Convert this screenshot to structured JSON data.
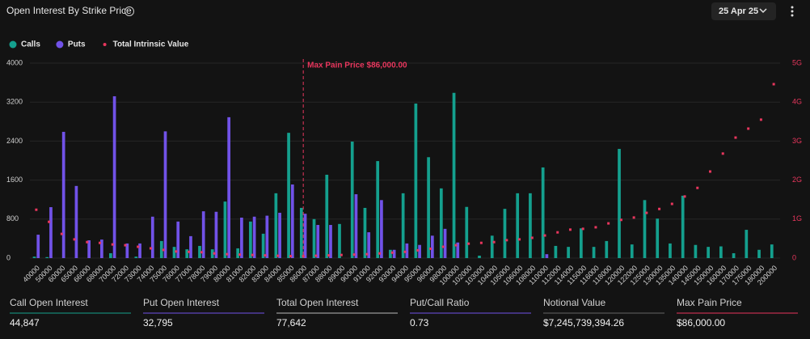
{
  "header": {
    "title": "Open Interest By Strike Price",
    "date": "25 Apr 25"
  },
  "chart_data": {
    "type": "bar",
    "categories": [
      "40000",
      "50000",
      "60000",
      "65000",
      "66000",
      "68000",
      "70000",
      "72000",
      "73000",
      "74000",
      "75000",
      "76000",
      "77000",
      "78000",
      "79000",
      "80000",
      "81000",
      "82000",
      "83000",
      "84000",
      "85000",
      "86000",
      "87000",
      "88000",
      "89000",
      "90000",
      "91000",
      "92000",
      "93000",
      "94000",
      "95000",
      "96000",
      "98000",
      "100000",
      "102000",
      "103000",
      "104000",
      "105000",
      "106000",
      "108000",
      "110000",
      "112000",
      "114000",
      "115000",
      "116000",
      "118000",
      "120000",
      "122000",
      "125000",
      "130000",
      "135000",
      "140000",
      "145000",
      "150000",
      "160000",
      "170000",
      "175000",
      "180000",
      "200000"
    ],
    "series": [
      {
        "name": "Calls",
        "color": "#14a08e",
        "values": [
          30,
          20,
          0,
          0,
          0,
          0,
          100,
          0,
          30,
          0,
          350,
          230,
          180,
          250,
          180,
          1160,
          200,
          750,
          500,
          1330,
          2570,
          1030,
          800,
          1710,
          700,
          2390,
          1030,
          1990,
          170,
          1330,
          3170,
          2070,
          1430,
          3390,
          1050,
          50,
          460,
          1010,
          1330,
          1330,
          1860,
          250,
          230,
          610,
          230,
          350,
          2240,
          280,
          1190,
          810,
          300,
          1280,
          270,
          230,
          240,
          100,
          580,
          170,
          280
        ]
      },
      {
        "name": "Puts",
        "color": "#7152e8",
        "values": [
          480,
          1045,
          2590,
          1480,
          365,
          380,
          3320,
          300,
          300,
          850,
          2600,
          750,
          450,
          960,
          950,
          2890,
          830,
          850,
          870,
          930,
          1510,
          910,
          680,
          680,
          0,
          1310,
          530,
          1190,
          170,
          300,
          270,
          460,
          600,
          320,
          0,
          0,
          0,
          0,
          0,
          0,
          80,
          0,
          0,
          0,
          0,
          0,
          0,
          0,
          0,
          0,
          0,
          0,
          0,
          0,
          0,
          0,
          0,
          0,
          0
        ]
      },
      {
        "name": "Total Intrinsic Value",
        "type": "scatter",
        "axis": "y2",
        "color": "#e8365d",
        "values": [
          1240000000.0,
          930000000.0,
          620000000.0,
          480000000.0,
          410000000.0,
          390000000.0,
          350000000.0,
          330000000.0,
          290000000.0,
          250000000.0,
          210000000.0,
          170000000.0,
          160000000.0,
          150000000.0,
          120000000.0,
          100000000.0,
          90000000.0,
          80000000.0,
          70000000.0,
          60000000.0,
          50000000.0,
          50000000.0,
          60000000.0,
          70000000.0,
          80000000.0,
          90000000.0,
          100000000.0,
          120000000.0,
          140000000.0,
          160000000.0,
          200000000.0,
          240000000.0,
          290000000.0,
          330000000.0,
          370000000.0,
          390000000.0,
          410000000.0,
          460000000.0,
          480000000.0,
          520000000.0,
          580000000.0,
          660000000.0,
          730000000.0,
          750000000.0,
          790000000.0,
          890000000.0,
          980000000.0,
          1040000000.0,
          1160000000.0,
          1260000000.0,
          1390000000.0,
          1580000000.0,
          1800000000.0,
          2220000000.0,
          2680000000.0,
          3090000000.0,
          3320000000.0,
          3550000000.0,
          4460000000.0
        ]
      }
    ],
    "ylim": [
      0,
      4000
    ],
    "yticks": [
      0,
      800,
      1600,
      2400,
      3200,
      4000
    ],
    "y2lim": [
      0,
      5000000000.0
    ],
    "y2ticks": [
      0,
      {
        "value": 1000000000.0,
        "label": "1G"
      },
      {
        "value": 2000000000.0,
        "label": "2G"
      },
      {
        "value": 3000000000.0,
        "label": "3G"
      },
      {
        "value": 4000000000.0,
        "label": "4G"
      },
      {
        "value": 5000000000.0,
        "label": "5G"
      }
    ],
    "grid": true,
    "legend": "top-left",
    "annotation": {
      "label": "Max Pain Price $86,000.00",
      "x": "86000",
      "color": "#e8365d"
    }
  },
  "stats": [
    {
      "label": "Call Open Interest",
      "value": "44,847",
      "color": "#14a08e"
    },
    {
      "label": "Put Open Interest",
      "value": "32,795",
      "color": "#7152e8"
    },
    {
      "label": "Total Open Interest",
      "value": "77,642",
      "color": "#bbbbbb"
    },
    {
      "label": "Put/Call Ratio",
      "value": "0.73",
      "color": "#7152e8"
    },
    {
      "label": "Notional Value",
      "value": "$7,245,739,394.26",
      "color": "#666666"
    },
    {
      "label": "Max Pain Price",
      "value": "$86,000.00",
      "color": "#e8365d"
    }
  ]
}
